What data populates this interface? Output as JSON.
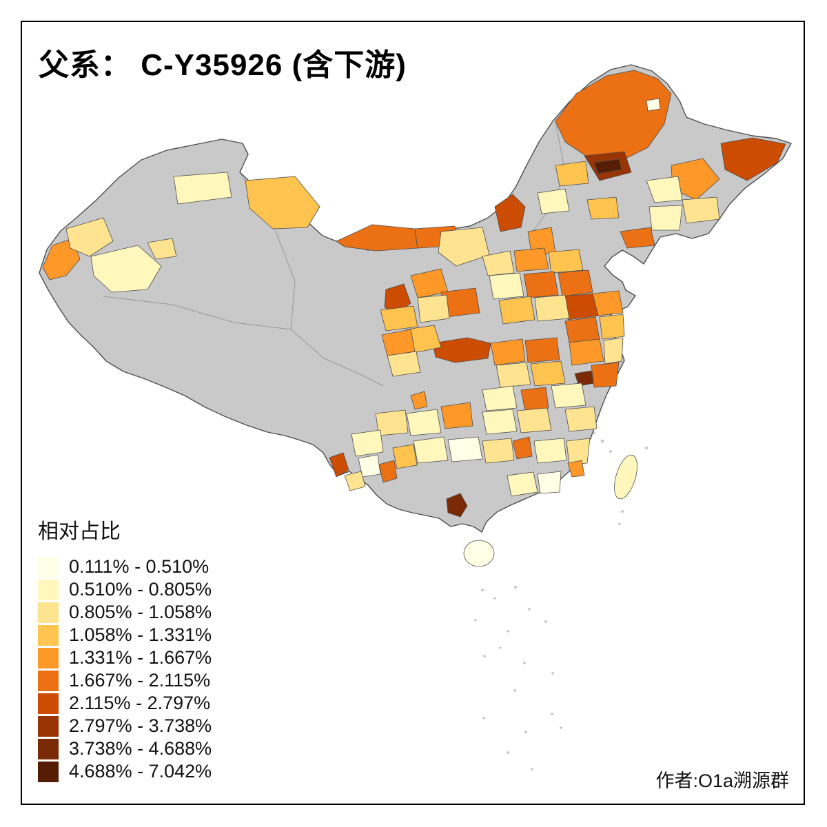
{
  "page": {
    "title": "父系： C-Y35926 (含下游)",
    "author": "作者:O1a溯源群"
  },
  "legend": {
    "title": "相对占比",
    "bins": [
      {
        "label": "0.111% - 0.510%",
        "color": "#FFFFE5"
      },
      {
        "label": "0.510% - 0.805%",
        "color": "#FFF7BC"
      },
      {
        "label": "0.805% - 1.058%",
        "color": "#FEE391"
      },
      {
        "label": "1.058% - 1.331%",
        "color": "#FEC44F"
      },
      {
        "label": "1.331% - 1.667%",
        "color": "#FE9929"
      },
      {
        "label": "1.667% - 2.115%",
        "color": "#EC7014"
      },
      {
        "label": "2.115% - 2.797%",
        "color": "#CC4C02"
      },
      {
        "label": "2.797% - 3.738%",
        "color": "#993404"
      },
      {
        "label": "3.738% - 4.688%",
        "color": "#7A2A05"
      },
      {
        "label": "4.688% - 7.042%",
        "color": "#551E04"
      }
    ]
  },
  "map": {
    "no_data_color": "#C9C9C9",
    "boundary_color": "#4D4D4D",
    "background_color": "#FFFFFF"
  }
}
